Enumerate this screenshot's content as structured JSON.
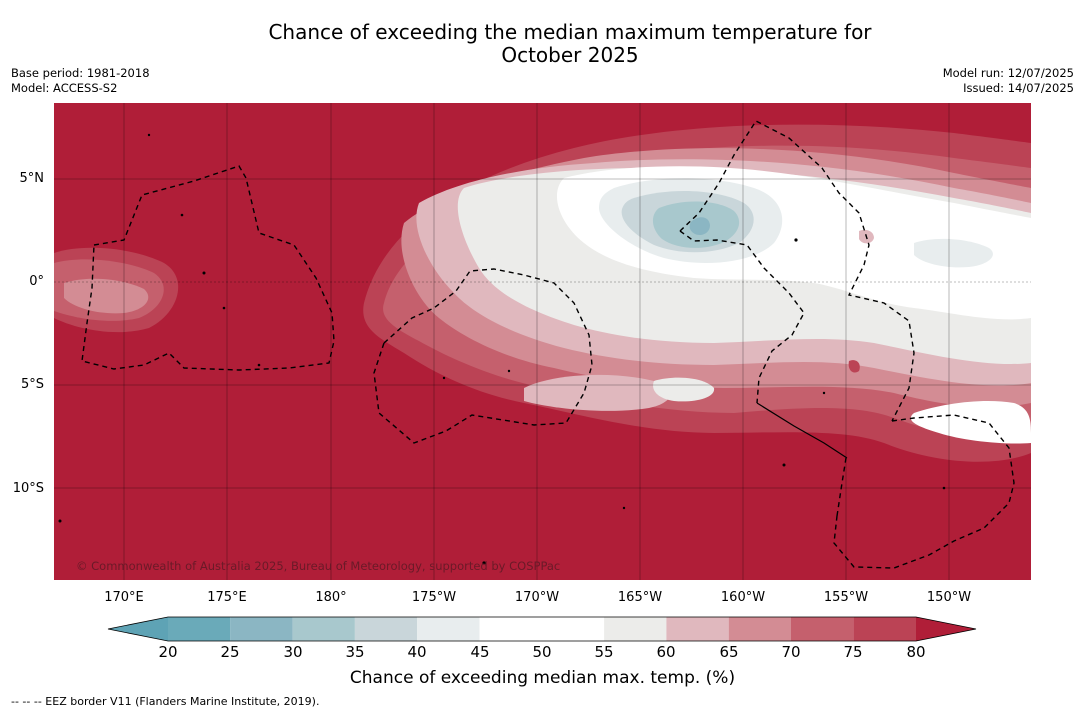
{
  "title_line1": "Chance of exceeding the median maximum temperature for",
  "title_line2": "October 2025",
  "base_period": "Base period: 1981-2018",
  "model": "Model: ACCESS-S2",
  "model_run": "Model run: 12/07/2025",
  "issued": "Issued: 14/07/2025",
  "copyright": "© Commonwealth of Australia 2025, Bureau of Meteorology, supported by COSPPac",
  "lat_labels": [
    "5°N",
    "0°",
    "5°S",
    "10°S"
  ],
  "lon_labels": [
    "170°E",
    "175°E",
    "180°",
    "175°W",
    "170°W",
    "165°W",
    "160°W",
    "155°W",
    "150°W"
  ],
  "colorbar": {
    "label": "Chance of exceeding median max. temp. (%)",
    "ticks": [
      "20",
      "25",
      "30",
      "35",
      "40",
      "45",
      "50",
      "55",
      "60",
      "65",
      "70",
      "75",
      "80"
    ],
    "colors": {
      "under": "#5ea3b5",
      "20-25": "#6aaab9",
      "25-30": "#8bb6c3",
      "30-35": "#a8c8cd",
      "35-40": "#c9d6da",
      "40-45": "#e8edee",
      "45-50": "#ffffff",
      "50-55": "#ffffff",
      "55-60": "#ececea",
      "60-65": "#e0b8be",
      "65-70": "#d38c94",
      "70-75": "#c5606d",
      "75-80": "#bb4355",
      "over": "#b01e38"
    }
  },
  "eez_note": "-- -- -- EEZ border V11 (Flanders Marine Institute, 2019)."
}
